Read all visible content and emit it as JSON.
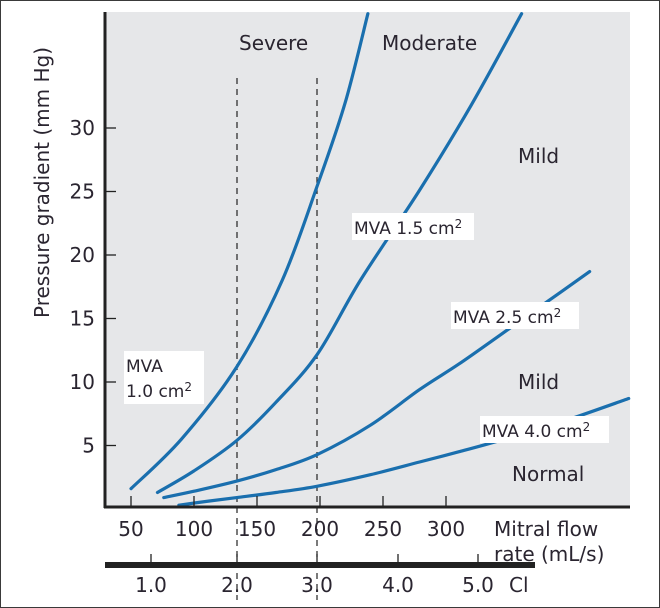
{
  "chart_data": {
    "type": "line",
    "title": "",
    "ylabel": "Pressure gradient (mm Hg)",
    "xlabel": "Mitral flow rate (mL/s)",
    "xlabel_lines": [
      "Mitral flow",
      "rate (mL/s)"
    ],
    "secondary_xlabel": "Cl",
    "xlim": [
      30,
      475
    ],
    "ylim": [
      0,
      39
    ],
    "x_ticks": [
      50,
      100,
      150,
      200,
      250,
      300
    ],
    "x_tick_labels": [
      "50",
      "100",
      "150",
      "200",
      "250",
      "300"
    ],
    "y_ticks": [
      5,
      10,
      15,
      20,
      25,
      30
    ],
    "y_tick_labels": [
      "5",
      "10",
      "15",
      "20",
      "25",
      "30"
    ],
    "secondary_x_ticks": [
      1.0,
      2.0,
      3.0,
      4.0,
      5.0
    ],
    "secondary_x_tick_labels": [
      "1.0",
      "2.0",
      "3.0",
      "4.0",
      "5.0"
    ],
    "secondary_x_mapping_flow": {
      "1.0": 66,
      "2.0": 134,
      "3.0": 198,
      "4.0": 262,
      "5.0": 325
    },
    "grid": false,
    "reference_lines": [
      {
        "ci": 2.0,
        "flow": 134,
        "style": "dashed"
      },
      {
        "ci": 3.0,
        "flow": 198,
        "style": "dashed"
      }
    ],
    "series": [
      {
        "name": "MVA 1.0 cm²",
        "label_lines": [
          "MVA",
          "1.0 cm"
        ],
        "x": [
          50,
          90,
          134,
          170,
          198,
          220,
          238
        ],
        "y": [
          1.6,
          5.5,
          11.2,
          18.0,
          25.5,
          32.0,
          39.0
        ]
      },
      {
        "name": "MVA 1.5 cm²",
        "label_lines": [
          "MVA 1.5 cm"
        ],
        "x": [
          71,
          100,
          134,
          165,
          198,
          232,
          279,
          320,
          360
        ],
        "y": [
          1.3,
          3.0,
          5.4,
          8.4,
          12.2,
          18.0,
          25.1,
          31.8,
          39.0
        ]
      },
      {
        "name": "MVA 2.5 cm²",
        "label_lines": [
          "MVA 2.5 cm"
        ],
        "x": [
          76,
          100,
          134,
          165,
          198,
          240,
          279,
          310,
          343,
          380,
          414
        ],
        "y": [
          0.9,
          1.4,
          2.2,
          3.1,
          4.3,
          6.6,
          9.4,
          11.4,
          13.7,
          16.3,
          18.7
        ]
      },
      {
        "name": "MVA 4.0 cm²",
        "label_lines": [
          "MVA 4.0 cm"
        ],
        "x": [
          88,
          110,
          134,
          165,
          198,
          240,
          279,
          310,
          343,
          390,
          445
        ],
        "y": [
          0.3,
          0.6,
          0.9,
          1.3,
          1.8,
          2.7,
          3.7,
          4.5,
          5.4,
          6.8,
          8.7
        ]
      }
    ],
    "region_labels": [
      "Severe",
      "Moderate",
      "Mild",
      "Mild",
      "Normal"
    ],
    "line_color": "#1a6fae",
    "background_color": "#e6e7e9"
  }
}
